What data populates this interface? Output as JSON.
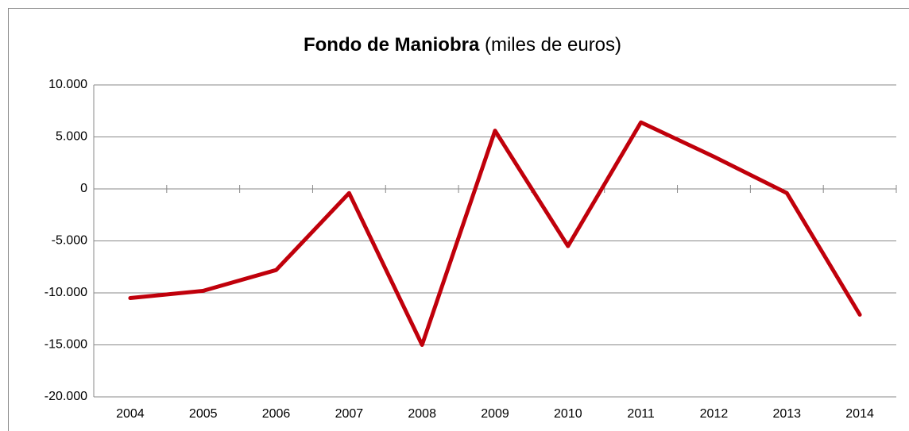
{
  "chart_data": {
    "type": "line",
    "title": "Fondo de Maniobra",
    "title_unit": "(miles de euros)",
    "categories": [
      "2004",
      "2005",
      "2006",
      "2007",
      "2008",
      "2009",
      "2010",
      "2011",
      "2012",
      "2013",
      "2014"
    ],
    "values": [
      -10500,
      -9800,
      -7800,
      -400,
      -15000,
      5600,
      -5500,
      6400,
      3100,
      -400,
      -12100
    ],
    "color": "#c0000b",
    "ylim": [
      -20000,
      10000
    ],
    "yticks": [
      {
        "value": -20000,
        "label": "-20.000"
      },
      {
        "value": -15000,
        "label": "-15.000"
      },
      {
        "value": -10000,
        "label": "-10.000"
      },
      {
        "value": -5000,
        "label": "-5.000"
      },
      0,
      {
        "value": 5000,
        "label": "5.000"
      },
      {
        "value": 10000,
        "label": "10.000"
      }
    ],
    "grid": true
  }
}
